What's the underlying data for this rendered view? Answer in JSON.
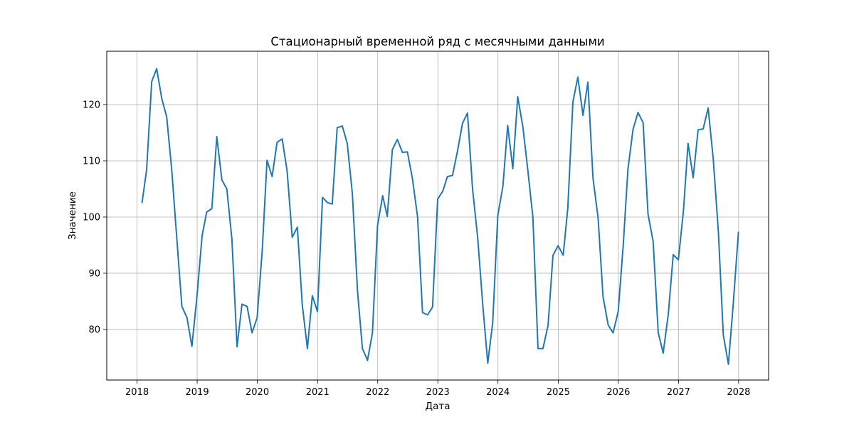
{
  "chart_data": {
    "type": "line",
    "title": "Стационарный временной ряд с месячными данными",
    "xlabel": "Дата",
    "ylabel": "Значение",
    "xlim": [
      "2017-07-01",
      "2028-07-01"
    ],
    "ylim": [
      71,
      129.5
    ],
    "x_ticks": [
      "2018",
      "2019",
      "2020",
      "2021",
      "2022",
      "2023",
      "2024",
      "2025",
      "2026",
      "2027",
      "2028"
    ],
    "y_ticks": [
      80,
      90,
      100,
      110,
      120
    ],
    "grid": true,
    "line_color": "#1f77b4",
    "series": [
      {
        "x": [
          "2018-01-31",
          "2018-02-28",
          "2018-03-31",
          "2018-04-30",
          "2018-05-31",
          "2018-06-30",
          "2018-07-31",
          "2018-08-31",
          "2018-09-30",
          "2018-10-31",
          "2018-11-30",
          "2018-12-31",
          "2019-01-31",
          "2019-02-28",
          "2019-03-31",
          "2019-04-30",
          "2019-05-31",
          "2019-06-30",
          "2019-07-31",
          "2019-08-31",
          "2019-09-30",
          "2019-10-31",
          "2019-11-30",
          "2019-12-31",
          "2020-01-31",
          "2020-02-29",
          "2020-03-31",
          "2020-04-30",
          "2020-05-31",
          "2020-06-30",
          "2020-07-31",
          "2020-08-31",
          "2020-09-30",
          "2020-10-31",
          "2020-11-30",
          "2020-12-31",
          "2021-01-31",
          "2021-02-28",
          "2021-03-31",
          "2021-04-30",
          "2021-05-31",
          "2021-06-30",
          "2021-07-31",
          "2021-08-31",
          "2021-09-30",
          "2021-10-31",
          "2021-11-30",
          "2021-12-31",
          "2022-01-31",
          "2022-02-28",
          "2022-03-31",
          "2022-04-30",
          "2022-05-31",
          "2022-06-30",
          "2022-07-31",
          "2022-08-31",
          "2022-09-30",
          "2022-10-31",
          "2022-11-30",
          "2022-12-31",
          "2023-01-31",
          "2023-02-28",
          "2023-03-31",
          "2023-04-30",
          "2023-05-31",
          "2023-06-30",
          "2023-07-31",
          "2023-08-31",
          "2023-09-30",
          "2023-10-31",
          "2023-11-30",
          "2023-12-31",
          "2024-01-31",
          "2024-02-29",
          "2024-03-31",
          "2024-04-30",
          "2024-05-31",
          "2024-06-30",
          "2024-07-31",
          "2024-08-31",
          "2024-09-30",
          "2024-10-31",
          "2024-11-30",
          "2024-12-31",
          "2025-01-31",
          "2025-02-28",
          "2025-03-31",
          "2025-04-30",
          "2025-05-31",
          "2025-06-30",
          "2025-07-31",
          "2025-08-31",
          "2025-09-30",
          "2025-10-31",
          "2025-11-30",
          "2025-12-31",
          "2026-01-31",
          "2026-02-28",
          "2026-03-31",
          "2026-04-30",
          "2026-05-31",
          "2026-06-30",
          "2026-07-31",
          "2026-08-31",
          "2026-09-30",
          "2026-10-31",
          "2026-11-30",
          "2026-12-31",
          "2027-01-31",
          "2027-02-28",
          "2027-03-31",
          "2027-04-30",
          "2027-05-31",
          "2027-06-30",
          "2027-07-31",
          "2027-08-31",
          "2027-09-30",
          "2027-10-31",
          "2027-11-30",
          "2027-12-31"
        ],
        "values": [
          102.5,
          108.4,
          124.1,
          126.4,
          121.1,
          117.8,
          108.2,
          95.9,
          84.1,
          82.1,
          77.0,
          86.0,
          96.7,
          100.9,
          101.5,
          114.3,
          106.6,
          105.0,
          96.0,
          76.9,
          84.5,
          84.1,
          79.4,
          82.1,
          94.1,
          110.1,
          107.2,
          113.3,
          113.9,
          108.2,
          96.4,
          98.2,
          84.4,
          76.6,
          86.0,
          83.2,
          103.5,
          102.6,
          102.3,
          115.9,
          116.2,
          113.1,
          104.2,
          87.0,
          76.6,
          74.5,
          79.4,
          98.5,
          103.8,
          100.1,
          112.0,
          113.8,
          111.5,
          111.6,
          106.8,
          100.0,
          83.0,
          82.6,
          84.0,
          103.2,
          104.6,
          107.2,
          107.4,
          111.7,
          116.7,
          118.5,
          104.9,
          96.3,
          84.6,
          74.0,
          81.2,
          100.3,
          105.5,
          116.3,
          108.6,
          121.4,
          116.1,
          108.4,
          100.0,
          76.6,
          76.6,
          80.7,
          93.2,
          94.9,
          93.2,
          101.6,
          120.5,
          124.9,
          118.1,
          124.0,
          106.9,
          99.8,
          85.8,
          80.8,
          79.4,
          83.2,
          95.2,
          108.5,
          115.6,
          118.6,
          116.8,
          100.5,
          95.7,
          79.4,
          75.8,
          82.7,
          93.3,
          92.4,
          101.1,
          113.1,
          107.0,
          115.5,
          115.7,
          119.4,
          110.3,
          97.4,
          79.0,
          73.8,
          84.8,
          97.4
        ]
      }
    ]
  }
}
